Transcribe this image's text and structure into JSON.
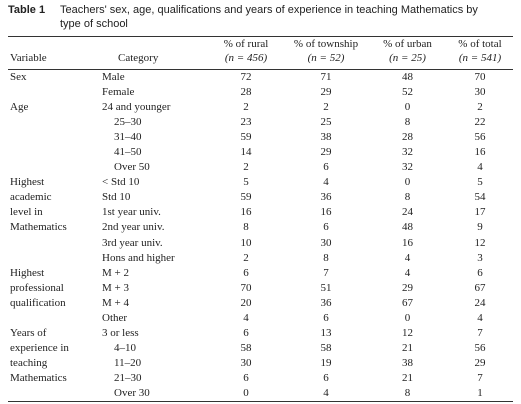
{
  "table": {
    "number": "Table 1",
    "caption_line1": "Teachers' sex, age, qualifications and years of experience in teaching Mathematics by",
    "caption_line2": "type of school",
    "headers": {
      "variable": "Variable",
      "category": "Category",
      "rural": "% of rural",
      "township": "% of township",
      "urban": "% of urban",
      "total": "% of total",
      "rural_n": "(n = 456)",
      "township_n": "(n = 52)",
      "urban_n": "(n = 25)",
      "total_n": "(n = 541)"
    },
    "rows": [
      {
        "variable": "Sex",
        "category": "Male",
        "rural": "72",
        "township": "71",
        "urban": "48",
        "total": "70"
      },
      {
        "variable": "",
        "category": "Female",
        "rural": "28",
        "township": "29",
        "urban": "52",
        "total": "30"
      },
      {
        "variable": "Age",
        "category": "24 and younger",
        "rural": "2",
        "township": "2",
        "urban": "0",
        "total": "2"
      },
      {
        "variable": "",
        "category": "25–30",
        "rural": "23",
        "township": "25",
        "urban": "8",
        "total": "22"
      },
      {
        "variable": "",
        "category": "31–40",
        "rural": "59",
        "township": "38",
        "urban": "28",
        "total": "56"
      },
      {
        "variable": "",
        "category": "41–50",
        "rural": "14",
        "township": "29",
        "urban": "32",
        "total": "16"
      },
      {
        "variable": "",
        "category": "Over 50",
        "rural": "2",
        "township": "6",
        "urban": "32",
        "total": "4"
      },
      {
        "variable": "Highest",
        "category": "< Std 10",
        "rural": "5",
        "township": "4",
        "urban": "0",
        "total": "5"
      },
      {
        "variable": "academic",
        "category": "Std 10",
        "rural": "59",
        "township": "36",
        "urban": "8",
        "total": "54"
      },
      {
        "variable": "level in",
        "category": "1st year univ.",
        "rural": "16",
        "township": "16",
        "urban": "24",
        "total": "17"
      },
      {
        "variable": "Mathematics",
        "category": "2nd year univ.",
        "rural": "8",
        "township": "6",
        "urban": "48",
        "total": "9"
      },
      {
        "variable": "",
        "category": "3rd year univ.",
        "rural": "10",
        "township": "30",
        "urban": "16",
        "total": "12"
      },
      {
        "variable": "",
        "category": "Hons and higher",
        "rural": "2",
        "township": "8",
        "urban": "4",
        "total": "3"
      },
      {
        "variable": "Highest",
        "category": "M + 2",
        "rural": "6",
        "township": "7",
        "urban": "4",
        "total": "6"
      },
      {
        "variable": "professional",
        "category": "M + 3",
        "rural": "70",
        "township": "51",
        "urban": "29",
        "total": "67"
      },
      {
        "variable": "qualification",
        "category": "M + 4",
        "rural": "20",
        "township": "36",
        "urban": "67",
        "total": "24"
      },
      {
        "variable": "",
        "category": "Other",
        "rural": "4",
        "township": "6",
        "urban": "0",
        "total": "4"
      },
      {
        "variable": "Years of",
        "category": "3 or less",
        "rural": "6",
        "township": "13",
        "urban": "12",
        "total": "7"
      },
      {
        "variable": "experience in",
        "category": "4–10",
        "rural": "58",
        "township": "58",
        "urban": "21",
        "total": "56"
      },
      {
        "variable": "teaching",
        "category": "11–20",
        "rural": "30",
        "township": "19",
        "urban": "38",
        "total": "29"
      },
      {
        "variable": "Mathematics",
        "category": "21–30",
        "rural": "6",
        "township": "6",
        "urban": "21",
        "total": "7"
      },
      {
        "variable": "",
        "category": "Over 30",
        "rural": "0",
        "township": "4",
        "urban": "8",
        "total": "1"
      }
    ]
  }
}
